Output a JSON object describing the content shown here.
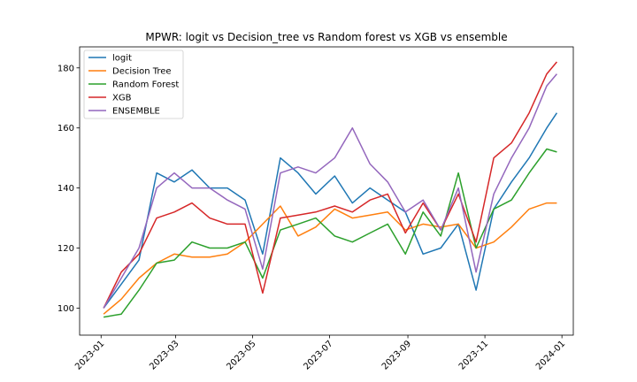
{
  "chart_data": {
    "type": "line",
    "title": "MPWR: logit vs Decision_tree vs Random forest vs XGB vs ensemble",
    "xlabel": "",
    "ylabel": "",
    "x": [
      "2023-01-03",
      "2023-01-17",
      "2023-01-31",
      "2023-02-14",
      "2023-02-28",
      "2023-03-14",
      "2023-03-28",
      "2023-04-11",
      "2023-04-25",
      "2023-05-09",
      "2023-05-23",
      "2023-06-06",
      "2023-06-20",
      "2023-07-05",
      "2023-07-19",
      "2023-08-02",
      "2023-08-16",
      "2023-08-30",
      "2023-09-13",
      "2023-09-27",
      "2023-10-11",
      "2023-10-25",
      "2023-11-08",
      "2023-11-22",
      "2023-12-06",
      "2023-12-20",
      "2023-12-28"
    ],
    "xlim": [
      "2022-12-15",
      "2024-01-10"
    ],
    "ylim": [
      91,
      187
    ],
    "xticks": [
      "2023-01",
      "2023-03",
      "2023-05",
      "2023-07",
      "2023-09",
      "2023-11",
      "2024-01"
    ],
    "yticks": [
      100,
      120,
      140,
      160,
      180
    ],
    "legend_position": "upper left",
    "series": [
      {
        "name": "logit",
        "color": "#1f77b4",
        "values": [
          100,
          108,
          116,
          145,
          142,
          146,
          140,
          140,
          136,
          118,
          150,
          145,
          138,
          144,
          135,
          140,
          136,
          132,
          118,
          120,
          128,
          106,
          133,
          142,
          150,
          160,
          165
        ]
      },
      {
        "name": "Decision Tree",
        "color": "#ff7f0e",
        "values": [
          98,
          103,
          110,
          115,
          118,
          117,
          117,
          118,
          122,
          128,
          134,
          124,
          127,
          133,
          130,
          131,
          132,
          126,
          128,
          127,
          128,
          120,
          122,
          127,
          133,
          135,
          135
        ]
      },
      {
        "name": "Random Forest",
        "color": "#2ca02c",
        "values": [
          97,
          98,
          106,
          115,
          116,
          122,
          120,
          120,
          122,
          110,
          126,
          128,
          130,
          124,
          122,
          125,
          128,
          118,
          132,
          124,
          145,
          120,
          133,
          136,
          145,
          153,
          152
        ]
      },
      {
        "name": "XGB",
        "color": "#d62728",
        "values": [
          100,
          112,
          118,
          130,
          132,
          135,
          130,
          128,
          128,
          105,
          130,
          131,
          132,
          134,
          132,
          136,
          138,
          125,
          135,
          126,
          138,
          122,
          150,
          155,
          165,
          178,
          182
        ]
      },
      {
        "name": "ENSEMBLE",
        "color": "#9467bd",
        "values": [
          100,
          110,
          120,
          140,
          145,
          140,
          140,
          136,
          133,
          113,
          145,
          147,
          145,
          150,
          160,
          148,
          142,
          132,
          136,
          126,
          140,
          112,
          138,
          150,
          160,
          174,
          178
        ]
      }
    ]
  }
}
